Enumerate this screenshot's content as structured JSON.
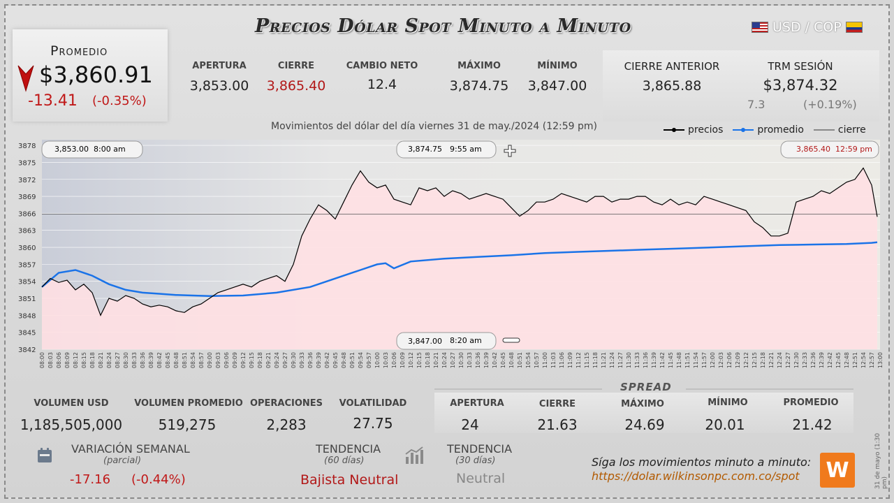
{
  "header": {
    "title": "Precios Dólar Spot Minuto a Minuto",
    "pair": "USD / COP"
  },
  "average": {
    "label": "Promedio",
    "value": "$3,860.91",
    "change": "-13.41",
    "change_pct": "(-0.35%)"
  },
  "stats": [
    {
      "label": "APERTURA",
      "value": "3,853.00",
      "color": "#222222"
    },
    {
      "label": "CIERRE",
      "value": "3,865.40",
      "color": "#b21818"
    },
    {
      "label": "CAMBIO NETO",
      "value": "12.4",
      "color": "#222222"
    },
    {
      "label": "MÁXIMO",
      "value": "3,874.75",
      "color": "#222222"
    },
    {
      "label": "MÍNIMO",
      "value": "3,847.00",
      "color": "#222222"
    }
  ],
  "previous_close": {
    "label": "CIERRE ANTERIOR",
    "value": "3,865.88"
  },
  "trm": {
    "label": "TRM SESIÓN",
    "value": "$3,874.32",
    "change": "7.3",
    "change_pct": "(+0.19%)"
  },
  "chart_caption": "Movimientos del dólar del día viernes 31 de may./2024 (12:59 pm)",
  "legend": {
    "prices": "precios",
    "average": "promedio",
    "close": "cierre"
  },
  "callouts": {
    "open": {
      "price": "3,853.00",
      "time": "8:00 am"
    },
    "max": {
      "price": "3,874.75",
      "time": "9:55 am"
    },
    "close": {
      "price": "3,865.40",
      "time": "12:59 pm"
    },
    "min": {
      "price": "3,847.00",
      "time": "8:20 am"
    }
  },
  "chart_data": {
    "type": "line",
    "y_ticks": [
      3842,
      3845,
      3848,
      3851,
      3854,
      3857,
      3860,
      3863,
      3866,
      3869,
      3872,
      3875,
      3878
    ],
    "ylim": [
      3842,
      3879
    ],
    "x_ticks": [
      "08:00",
      "08:03",
      "08:06",
      "08:09",
      "08:12",
      "08:15",
      "08:18",
      "08:21",
      "08:24",
      "08:27",
      "08:30",
      "08:33",
      "08:36",
      "08:39",
      "08:42",
      "08:45",
      "08:48",
      "08:51",
      "08:54",
      "08:57",
      "09:00",
      "09:03",
      "09:06",
      "09:09",
      "09:12",
      "09:15",
      "09:18",
      "09:21",
      "09:24",
      "09:27",
      "09:30",
      "09:33",
      "09:36",
      "09:39",
      "09:42",
      "09:45",
      "09:48",
      "09:51",
      "09:54",
      "09:57",
      "10:00",
      "10:03",
      "10:06",
      "10:09",
      "10:12",
      "10:15",
      "10:18",
      "10:21",
      "10:24",
      "10:27",
      "10:30",
      "10:33",
      "10:36",
      "10:39",
      "10:42",
      "10:45",
      "10:48",
      "10:51",
      "10:54",
      "10:57",
      "11:00",
      "11:03",
      "11:06",
      "11:09",
      "11:12",
      "11:15",
      "11:18",
      "11:21",
      "11:24",
      "11:27",
      "11:30",
      "11:33",
      "11:36",
      "11:39",
      "11:42",
      "11:45",
      "11:48",
      "11:51",
      "11:54",
      "11:57",
      "12:00",
      "12:03",
      "12:06",
      "12:09",
      "12:12",
      "12:15",
      "12:18",
      "12:21",
      "12:24",
      "12:27",
      "12:30",
      "12:33",
      "12:36",
      "12:39",
      "12:42",
      "12:45",
      "12:48",
      "12:51",
      "12:54",
      "12:57",
      "13:00"
    ],
    "close_line": 3865.88,
    "series": [
      {
        "name": "precios",
        "color": "#000000",
        "x": [
          "08:00",
          "08:03",
          "08:06",
          "08:09",
          "08:12",
          "08:15",
          "08:18",
          "08:21",
          "08:24",
          "08:27",
          "08:30",
          "08:33",
          "08:36",
          "08:39",
          "08:42",
          "08:45",
          "08:48",
          "08:51",
          "08:54",
          "08:57",
          "09:00",
          "09:03",
          "09:06",
          "09:09",
          "09:12",
          "09:15",
          "09:18",
          "09:21",
          "09:24",
          "09:27",
          "09:30",
          "09:33",
          "09:36",
          "09:39",
          "09:42",
          "09:45",
          "09:48",
          "09:51",
          "09:54",
          "09:57",
          "10:00",
          "10:03",
          "10:06",
          "10:09",
          "10:12",
          "10:15",
          "10:18",
          "10:21",
          "10:24",
          "10:27",
          "10:30",
          "10:33",
          "10:36",
          "10:39",
          "10:42",
          "10:45",
          "10:48",
          "10:51",
          "10:54",
          "10:57",
          "11:00",
          "11:03",
          "11:06",
          "11:09",
          "11:12",
          "11:15",
          "11:18",
          "11:21",
          "11:24",
          "11:27",
          "11:30",
          "11:33",
          "11:36",
          "11:39",
          "11:42",
          "11:45",
          "11:48",
          "11:51",
          "11:54",
          "11:57",
          "12:00",
          "12:03",
          "12:06",
          "12:09",
          "12:12",
          "12:15",
          "12:18",
          "12:21",
          "12:24",
          "12:27",
          "12:30",
          "12:33",
          "12:36",
          "12:39",
          "12:42",
          "12:45",
          "12:48",
          "12:51",
          "12:54",
          "12:57",
          "12:59"
        ],
        "values": [
          3853.0,
          3854.5,
          3853.8,
          3854.2,
          3852.5,
          3853.5,
          3852.0,
          3848.0,
          3851.0,
          3850.5,
          3851.5,
          3851.0,
          3850.0,
          3849.5,
          3849.8,
          3849.5,
          3848.8,
          3848.5,
          3849.5,
          3850.0,
          3851.0,
          3852.0,
          3852.5,
          3853.0,
          3853.5,
          3853.0,
          3854.0,
          3854.5,
          3855.0,
          3854.0,
          3857.0,
          3862.0,
          3865.0,
          3867.5,
          3866.5,
          3865.0,
          3868.0,
          3871.0,
          3873.5,
          3871.5,
          3870.5,
          3871.0,
          3868.5,
          3868.0,
          3867.5,
          3870.5,
          3870.0,
          3870.5,
          3869.0,
          3870.0,
          3869.5,
          3868.5,
          3869.0,
          3869.5,
          3869.0,
          3868.5,
          3867.0,
          3865.5,
          3866.5,
          3868.0,
          3868.0,
          3868.5,
          3869.5,
          3869.0,
          3868.5,
          3868.0,
          3869.0,
          3869.0,
          3868.0,
          3868.5,
          3868.5,
          3869.0,
          3869.0,
          3868.0,
          3867.5,
          3868.5,
          3867.5,
          3868.0,
          3867.5,
          3869.0,
          3868.5,
          3868.0,
          3867.5,
          3867.0,
          3866.5,
          3864.5,
          3863.5,
          3862.0,
          3862.0,
          3862.5,
          3868.0,
          3868.5,
          3869.0,
          3870.0,
          3869.5,
          3870.5,
          3871.5,
          3872.0,
          3874.0,
          3871.0,
          3865.4
        ]
      },
      {
        "name": "promedio",
        "color": "#1a73e8",
        "x": [
          "08:00",
          "08:06",
          "08:12",
          "08:18",
          "08:24",
          "08:30",
          "08:36",
          "08:42",
          "08:48",
          "08:54",
          "09:00",
          "09:12",
          "09:24",
          "09:36",
          "09:42",
          "09:48",
          "09:54",
          "10:00",
          "10:03",
          "10:06",
          "10:12",
          "10:24",
          "10:36",
          "10:48",
          "11:00",
          "11:12",
          "11:24",
          "11:36",
          "11:48",
          "12:00",
          "12:12",
          "12:24",
          "12:36",
          "12:48",
          "12:57",
          "12:59"
        ],
        "values": [
          3853.0,
          3855.5,
          3856.0,
          3855.0,
          3853.5,
          3852.5,
          3852.0,
          3851.8,
          3851.6,
          3851.5,
          3851.4,
          3851.5,
          3852.0,
          3853.0,
          3854.0,
          3855.0,
          3856.0,
          3857.0,
          3857.2,
          3856.3,
          3857.5,
          3858.0,
          3858.3,
          3858.6,
          3859.0,
          3859.2,
          3859.4,
          3859.6,
          3859.8,
          3860.0,
          3860.2,
          3860.4,
          3860.5,
          3860.6,
          3860.8,
          3860.91
        ]
      }
    ]
  },
  "bottom_stats": [
    {
      "label": "VOLUMEN USD",
      "value": "1,185,505,000"
    },
    {
      "label": "VOLUMEN PROMEDIO",
      "value": "519,275"
    },
    {
      "label": "OPERACIONES",
      "value": "2,283"
    },
    {
      "label": "VOLATILIDAD",
      "value": "27.75"
    }
  ],
  "spread": {
    "title": "SPREAD",
    "items": [
      {
        "label": "APERTURA",
        "value": "24"
      },
      {
        "label": "CIERRE",
        "value": "21.63"
      },
      {
        "label": "MÁXIMO",
        "value": "24.69"
      },
      {
        "label": "MÍNIMO",
        "value": "20.01"
      },
      {
        "label": "PROMEDIO",
        "value": "21.42"
      }
    ]
  },
  "weekly": {
    "label": "VARIACIÓN SEMANAL",
    "sub": "(parcial)",
    "change": "-17.16",
    "change_pct": "(-0.44%)"
  },
  "trend60": {
    "label": "TENDENCIA",
    "sub": "(60 días)",
    "value": "Bajista Neutral"
  },
  "trend30": {
    "label": "TENDENCIA",
    "sub": "(30 días)",
    "value": "Neutral"
  },
  "footer": {
    "text": "Síga los movimientos minuto a minuto:",
    "url": "https://dolar.wilkinsonpc.com.co/spot",
    "logo": "W"
  },
  "side_date": "31 de mayo (1:30 pm)"
}
